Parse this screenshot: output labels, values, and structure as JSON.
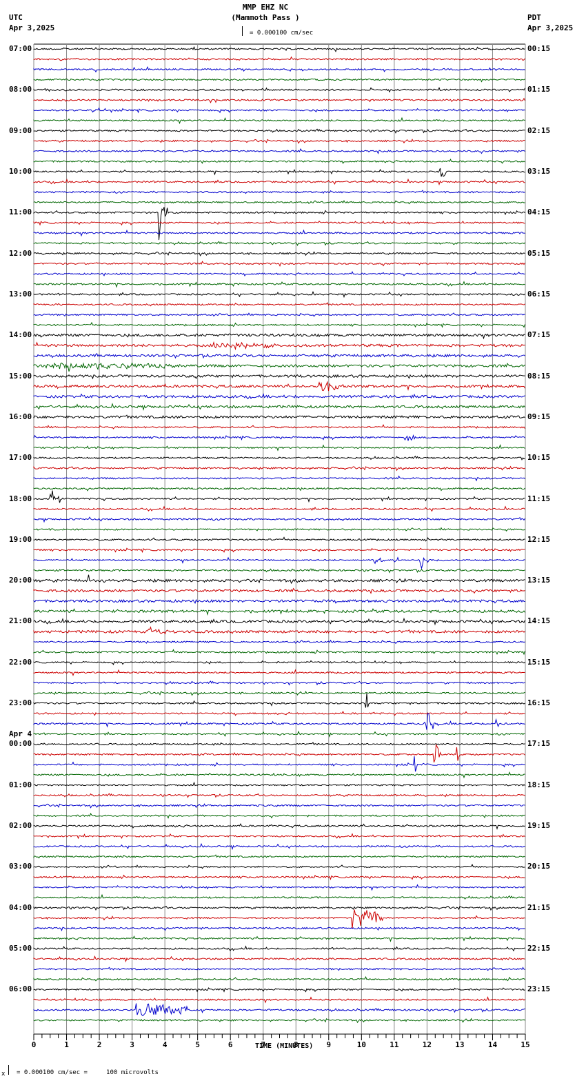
{
  "header": {
    "station": "MMP EHZ NC",
    "location": "(Mammoth Pass )",
    "left_tz": "UTC",
    "left_date": "Apr 3,2025",
    "right_tz": "PDT",
    "right_date": "Apr 3,2025",
    "scale_text": "= 0.000100 cm/sec"
  },
  "footer": {
    "scale_text": "= 0.000100 cm/sec =     100 microvolts",
    "prefix": "x"
  },
  "chart_data": {
    "type": "line",
    "title": "MMP EHZ NC (Mammoth Pass )",
    "xlabel": "TIME (MINUTES)",
    "ylabel": "",
    "xlim": [
      0,
      15
    ],
    "x_ticks": [
      "0",
      "1",
      "2",
      "3",
      "4",
      "5",
      "6",
      "7",
      "8",
      "9",
      "10",
      "11",
      "12",
      "13",
      "14",
      "15"
    ],
    "grid": true,
    "traces_per_hour": 4,
    "trace_colors": [
      "#000000",
      "#cc0000",
      "#0000cc",
      "#006600"
    ],
    "left_labels_utc": [
      "07:00",
      "08:00",
      "09:00",
      "10:00",
      "11:00",
      "12:00",
      "13:00",
      "14:00",
      "15:00",
      "16:00",
      "17:00",
      "18:00",
      "19:00",
      "20:00",
      "21:00",
      "22:00",
      "23:00",
      "00:00",
      "01:00",
      "02:00",
      "03:00",
      "04:00",
      "05:00",
      "06:00"
    ],
    "date_change_label": "Apr 4",
    "date_change_index": 17,
    "right_labels_pdt": [
      "00:15",
      "01:15",
      "02:15",
      "03:15",
      "04:15",
      "05:15",
      "06:15",
      "07:15",
      "08:15",
      "09:15",
      "10:15",
      "11:15",
      "12:15",
      "13:15",
      "14:15",
      "15:15",
      "16:15",
      "17:15",
      "18:15",
      "19:15",
      "20:15",
      "21:15",
      "22:15",
      "23:15"
    ],
    "events": [
      {
        "trace": 12,
        "minute": 12.4,
        "amp": 10,
        "dur": 0.2
      },
      {
        "trace": 16,
        "minute": 3.8,
        "amp": 14,
        "dur": 0.3
      },
      {
        "trace": 16,
        "minute": 3.8,
        "amp": 40,
        "dur": 0.05,
        "down": true
      },
      {
        "trace": 29,
        "minute": 5.5,
        "amp": 4,
        "dur": 2.0
      },
      {
        "trace": 31,
        "minute": 0.5,
        "amp": 5,
        "dur": 4.0
      },
      {
        "trace": 33,
        "minute": 8.7,
        "amp": 7,
        "dur": 0.8
      },
      {
        "trace": 38,
        "minute": 11.3,
        "amp": 6,
        "dur": 0.3
      },
      {
        "trace": 44,
        "minute": 0.5,
        "amp": 14,
        "dur": 0.3
      },
      {
        "trace": 49,
        "minute": 8.1,
        "amp": 14,
        "dur": 0.05
      },
      {
        "trace": 50,
        "minute": 10.3,
        "amp": 5,
        "dur": 0.4
      },
      {
        "trace": 50,
        "minute": 11.8,
        "amp": 18,
        "dur": 0.1
      },
      {
        "trace": 52,
        "minute": 1.65,
        "amp": 16,
        "dur": 0.05
      },
      {
        "trace": 57,
        "minute": 3.5,
        "amp": 6,
        "dur": 0.6
      },
      {
        "trace": 64,
        "minute": 10.1,
        "amp": 28,
        "dur": 0.1
      },
      {
        "trace": 66,
        "minute": 11.9,
        "amp": 22,
        "dur": 0.3
      },
      {
        "trace": 66,
        "minute": 14.1,
        "amp": 10,
        "dur": 0.1
      },
      {
        "trace": 69,
        "minute": 12.2,
        "amp": 18,
        "dur": 0.2
      },
      {
        "trace": 69,
        "minute": 12.9,
        "amp": 18,
        "dur": 0.1
      },
      {
        "trace": 70,
        "minute": 11.6,
        "amp": 16,
        "dur": 0.1
      },
      {
        "trace": 74,
        "minute": 6.8,
        "amp": 10,
        "dur": 0.1
      },
      {
        "trace": 85,
        "minute": 9.7,
        "amp": 16,
        "dur": 1.0
      },
      {
        "trace": 94,
        "minute": 3.1,
        "amp": 10,
        "dur": 1.6
      }
    ]
  }
}
